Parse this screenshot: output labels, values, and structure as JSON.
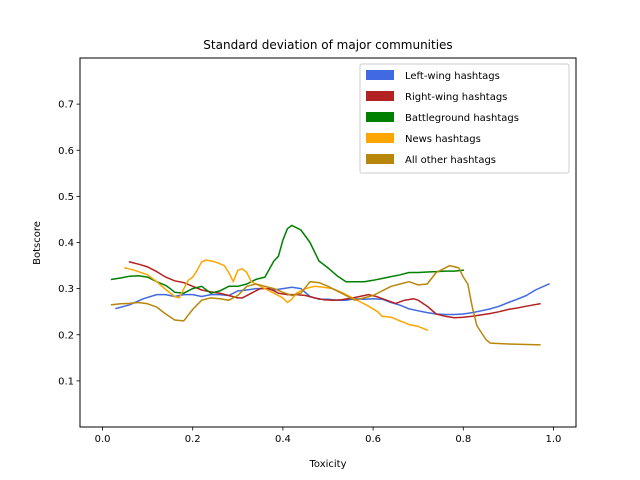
{
  "chart_data": {
    "type": "line",
    "title": "Standard deviation of major communities",
    "xlabel": "Toxicity",
    "ylabel": "Botscore",
    "xlim": [
      -0.05,
      1.05
    ],
    "ylim": [
      0.0,
      0.8
    ],
    "xticks": [
      0.0,
      0.2,
      0.4,
      0.6,
      0.8,
      1.0
    ],
    "xtick_labels": [
      "0.0",
      "0.2",
      "0.4",
      "0.6",
      "0.8",
      "1.0"
    ],
    "yticks": [
      0.1,
      0.2,
      0.3,
      0.4,
      0.5,
      0.6,
      0.7
    ],
    "ytick_labels": [
      "0.1",
      "0.2",
      "0.3",
      "0.4",
      "0.5",
      "0.6",
      "0.7"
    ],
    "grid": false,
    "legend_position": "top-right",
    "series": [
      {
        "name": "Left-wing hashtags",
        "color": "#4169e1",
        "points": [
          [
            0.03,
            0.257
          ],
          [
            0.06,
            0.265
          ],
          [
            0.09,
            0.278
          ],
          [
            0.12,
            0.287
          ],
          [
            0.14,
            0.287
          ],
          [
            0.16,
            0.283
          ],
          [
            0.18,
            0.287
          ],
          [
            0.2,
            0.287
          ],
          [
            0.22,
            0.283
          ],
          [
            0.24,
            0.287
          ],
          [
            0.26,
            0.287
          ],
          [
            0.28,
            0.285
          ],
          [
            0.3,
            0.295
          ],
          [
            0.32,
            0.297
          ],
          [
            0.34,
            0.3
          ],
          [
            0.36,
            0.3
          ],
          [
            0.38,
            0.297
          ],
          [
            0.4,
            0.3
          ],
          [
            0.42,
            0.303
          ],
          [
            0.44,
            0.3
          ],
          [
            0.46,
            0.283
          ],
          [
            0.48,
            0.277
          ],
          [
            0.5,
            0.277
          ],
          [
            0.52,
            0.275
          ],
          [
            0.54,
            0.275
          ],
          [
            0.56,
            0.278
          ],
          [
            0.58,
            0.277
          ],
          [
            0.6,
            0.278
          ],
          [
            0.62,
            0.277
          ],
          [
            0.64,
            0.27
          ],
          [
            0.66,
            0.264
          ],
          [
            0.68,
            0.256
          ],
          [
            0.7,
            0.252
          ],
          [
            0.72,
            0.248
          ],
          [
            0.74,
            0.245
          ],
          [
            0.76,
            0.244
          ],
          [
            0.78,
            0.244
          ],
          [
            0.8,
            0.245
          ],
          [
            0.82,
            0.248
          ],
          [
            0.84,
            0.252
          ],
          [
            0.86,
            0.256
          ],
          [
            0.88,
            0.262
          ],
          [
            0.9,
            0.27
          ],
          [
            0.92,
            0.277
          ],
          [
            0.94,
            0.285
          ],
          [
            0.96,
            0.297
          ],
          [
            0.99,
            0.31
          ]
        ]
      },
      {
        "name": "Right-wing hashtags",
        "color": "#b22222",
        "points": [
          [
            0.06,
            0.358
          ],
          [
            0.08,
            0.353
          ],
          [
            0.1,
            0.347
          ],
          [
            0.12,
            0.337
          ],
          [
            0.14,
            0.325
          ],
          [
            0.16,
            0.317
          ],
          [
            0.18,
            0.313
          ],
          [
            0.2,
            0.305
          ],
          [
            0.22,
            0.297
          ],
          [
            0.24,
            0.293
          ],
          [
            0.26,
            0.29
          ],
          [
            0.28,
            0.285
          ],
          [
            0.3,
            0.28
          ],
          [
            0.31,
            0.28
          ],
          [
            0.33,
            0.29
          ],
          [
            0.35,
            0.3
          ],
          [
            0.37,
            0.3
          ],
          [
            0.39,
            0.29
          ],
          [
            0.41,
            0.287
          ],
          [
            0.43,
            0.287
          ],
          [
            0.45,
            0.285
          ],
          [
            0.47,
            0.28
          ],
          [
            0.49,
            0.276
          ],
          [
            0.51,
            0.275
          ],
          [
            0.53,
            0.276
          ],
          [
            0.55,
            0.279
          ],
          [
            0.57,
            0.283
          ],
          [
            0.59,
            0.287
          ],
          [
            0.61,
            0.282
          ],
          [
            0.63,
            0.275
          ],
          [
            0.65,
            0.268
          ],
          [
            0.67,
            0.275
          ],
          [
            0.69,
            0.278
          ],
          [
            0.7,
            0.275
          ],
          [
            0.72,
            0.262
          ],
          [
            0.74,
            0.245
          ],
          [
            0.76,
            0.24
          ],
          [
            0.78,
            0.237
          ],
          [
            0.8,
            0.238
          ],
          [
            0.82,
            0.24
          ],
          [
            0.84,
            0.243
          ],
          [
            0.86,
            0.246
          ],
          [
            0.88,
            0.25
          ],
          [
            0.9,
            0.255
          ],
          [
            0.92,
            0.258
          ],
          [
            0.94,
            0.262
          ],
          [
            0.97,
            0.267
          ]
        ]
      },
      {
        "name": "Battleground hashtags",
        "color": "#008000",
        "points": [
          [
            0.02,
            0.32
          ],
          [
            0.04,
            0.323
          ],
          [
            0.06,
            0.327
          ],
          [
            0.08,
            0.328
          ],
          [
            0.1,
            0.325
          ],
          [
            0.12,
            0.315
          ],
          [
            0.14,
            0.307
          ],
          [
            0.15,
            0.3
          ],
          [
            0.16,
            0.292
          ],
          [
            0.18,
            0.29
          ],
          [
            0.2,
            0.3
          ],
          [
            0.22,
            0.305
          ],
          [
            0.24,
            0.29
          ],
          [
            0.26,
            0.295
          ],
          [
            0.28,
            0.305
          ],
          [
            0.3,
            0.305
          ],
          [
            0.32,
            0.31
          ],
          [
            0.34,
            0.32
          ],
          [
            0.36,
            0.325
          ],
          [
            0.38,
            0.36
          ],
          [
            0.39,
            0.37
          ],
          [
            0.4,
            0.405
          ],
          [
            0.41,
            0.43
          ],
          [
            0.42,
            0.437
          ],
          [
            0.44,
            0.427
          ],
          [
            0.46,
            0.4
          ],
          [
            0.48,
            0.36
          ],
          [
            0.5,
            0.345
          ],
          [
            0.52,
            0.328
          ],
          [
            0.54,
            0.315
          ],
          [
            0.56,
            0.315
          ],
          [
            0.58,
            0.315
          ],
          [
            0.6,
            0.318
          ],
          [
            0.62,
            0.322
          ],
          [
            0.64,
            0.326
          ],
          [
            0.66,
            0.33
          ],
          [
            0.68,
            0.335
          ],
          [
            0.7,
            0.335
          ],
          [
            0.72,
            0.336
          ],
          [
            0.74,
            0.337
          ],
          [
            0.76,
            0.338
          ],
          [
            0.78,
            0.338
          ],
          [
            0.8,
            0.34
          ]
        ]
      },
      {
        "name": "News hashtags",
        "color": "#ffa500",
        "points": [
          [
            0.05,
            0.345
          ],
          [
            0.07,
            0.34
          ],
          [
            0.1,
            0.33
          ],
          [
            0.12,
            0.315
          ],
          [
            0.14,
            0.298
          ],
          [
            0.16,
            0.283
          ],
          [
            0.17,
            0.28
          ],
          [
            0.19,
            0.318
          ],
          [
            0.2,
            0.325
          ],
          [
            0.21,
            0.34
          ],
          [
            0.22,
            0.358
          ],
          [
            0.23,
            0.362
          ],
          [
            0.25,
            0.358
          ],
          [
            0.27,
            0.35
          ],
          [
            0.28,
            0.335
          ],
          [
            0.29,
            0.315
          ],
          [
            0.3,
            0.34
          ],
          [
            0.31,
            0.343
          ],
          [
            0.32,
            0.335
          ],
          [
            0.33,
            0.315
          ],
          [
            0.34,
            0.31
          ],
          [
            0.36,
            0.3
          ],
          [
            0.38,
            0.29
          ],
          [
            0.4,
            0.28
          ],
          [
            0.41,
            0.27
          ],
          [
            0.42,
            0.277
          ],
          [
            0.43,
            0.29
          ],
          [
            0.45,
            0.3
          ],
          [
            0.47,
            0.305
          ],
          [
            0.49,
            0.303
          ],
          [
            0.51,
            0.3
          ],
          [
            0.53,
            0.292
          ],
          [
            0.55,
            0.282
          ],
          [
            0.57,
            0.272
          ],
          [
            0.59,
            0.262
          ],
          [
            0.61,
            0.25
          ],
          [
            0.62,
            0.24
          ],
          [
            0.64,
            0.238
          ],
          [
            0.66,
            0.23
          ],
          [
            0.68,
            0.222
          ],
          [
            0.7,
            0.218
          ],
          [
            0.72,
            0.21
          ]
        ]
      },
      {
        "name": "All other hashtags",
        "color": "#b8860b",
        "points": [
          [
            0.02,
            0.265
          ],
          [
            0.04,
            0.267
          ],
          [
            0.06,
            0.268
          ],
          [
            0.08,
            0.27
          ],
          [
            0.1,
            0.267
          ],
          [
            0.12,
            0.26
          ],
          [
            0.14,
            0.245
          ],
          [
            0.16,
            0.232
          ],
          [
            0.18,
            0.23
          ],
          [
            0.2,
            0.255
          ],
          [
            0.22,
            0.275
          ],
          [
            0.24,
            0.28
          ],
          [
            0.26,
            0.278
          ],
          [
            0.28,
            0.275
          ],
          [
            0.3,
            0.285
          ],
          [
            0.32,
            0.305
          ],
          [
            0.34,
            0.31
          ],
          [
            0.36,
            0.305
          ],
          [
            0.38,
            0.3
          ],
          [
            0.4,
            0.292
          ],
          [
            0.42,
            0.285
          ],
          [
            0.44,
            0.29
          ],
          [
            0.46,
            0.315
          ],
          [
            0.48,
            0.313
          ],
          [
            0.5,
            0.305
          ],
          [
            0.52,
            0.295
          ],
          [
            0.54,
            0.285
          ],
          [
            0.56,
            0.275
          ],
          [
            0.58,
            0.28
          ],
          [
            0.6,
            0.285
          ],
          [
            0.62,
            0.295
          ],
          [
            0.64,
            0.305
          ],
          [
            0.66,
            0.31
          ],
          [
            0.68,
            0.315
          ],
          [
            0.7,
            0.308
          ],
          [
            0.72,
            0.31
          ],
          [
            0.74,
            0.335
          ],
          [
            0.76,
            0.345
          ],
          [
            0.77,
            0.35
          ],
          [
            0.79,
            0.345
          ],
          [
            0.8,
            0.325
          ],
          [
            0.81,
            0.31
          ],
          [
            0.82,
            0.26
          ],
          [
            0.83,
            0.22
          ],
          [
            0.85,
            0.19
          ],
          [
            0.86,
            0.182
          ],
          [
            0.9,
            0.18
          ],
          [
            0.97,
            0.178
          ]
        ]
      }
    ]
  }
}
